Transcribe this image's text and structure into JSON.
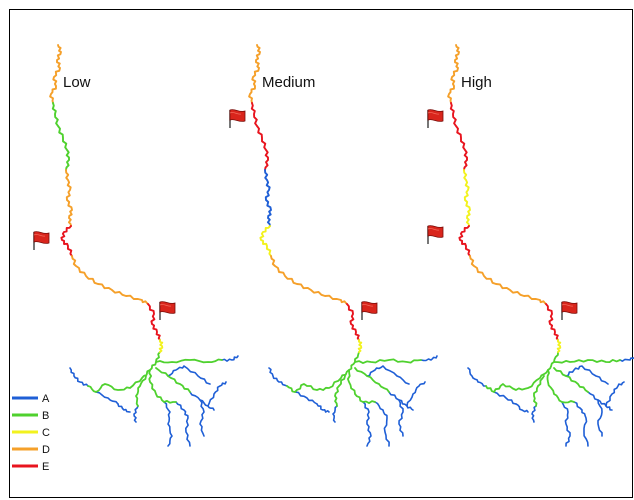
{
  "panels": [
    {
      "label": "Low",
      "segments": [
        "D",
        "B",
        "D",
        "E",
        "D",
        "E",
        "C"
      ]
    },
    {
      "label": "Medium",
      "segments": [
        "D",
        "E",
        "A",
        "C",
        "D",
        "E",
        "C"
      ]
    },
    {
      "label": "High",
      "segments": [
        "D",
        "E",
        "C",
        "E",
        "D",
        "E",
        "C"
      ]
    }
  ],
  "legend": [
    {
      "key": "A",
      "color": "#1f5fd6"
    },
    {
      "key": "B",
      "color": "#4fd12e"
    },
    {
      "key": "C",
      "color": "#f2f21e"
    },
    {
      "key": "D",
      "color": "#f5a02a"
    },
    {
      "key": "E",
      "color": "#e8141e"
    }
  ],
  "marker_icon": "flag-icon",
  "network_colors": {
    "tributary": "#1f5fd6",
    "main_branch": "#4fd12e"
  }
}
